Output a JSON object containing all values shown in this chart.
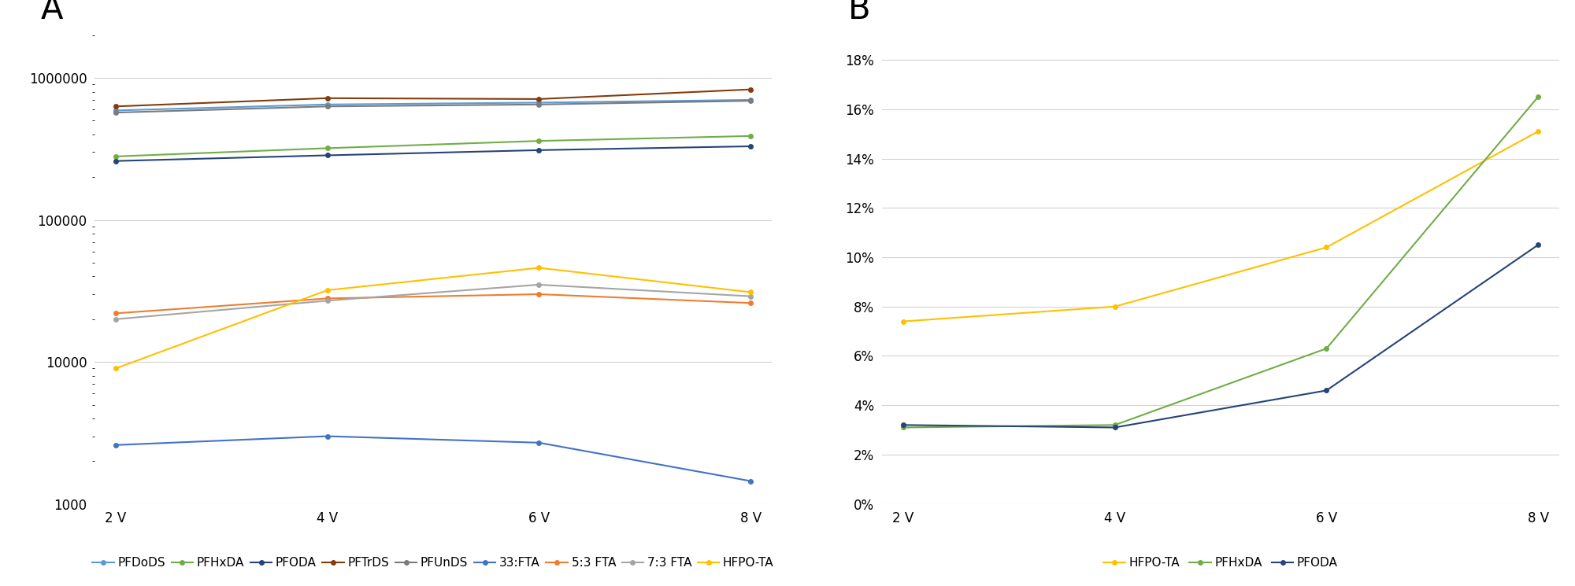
{
  "panel_A": {
    "x_labels": [
      "2 V",
      "4 V",
      "6 V",
      "8 V"
    ],
    "x_values": [
      2,
      4,
      6,
      8
    ],
    "series": [
      {
        "name": "PFDoDS",
        "color": "#5b9bd5",
        "values": [
          590000,
          650000,
          670000,
          700000
        ]
      },
      {
        "name": "PFHxDA",
        "color": "#70ad47",
        "values": [
          280000,
          320000,
          360000,
          390000
        ]
      },
      {
        "name": "PFODA",
        "color": "#264478",
        "values": [
          260000,
          285000,
          310000,
          330000
        ]
      },
      {
        "name": "PFTrDS",
        "color": "#843c0c",
        "values": [
          630000,
          720000,
          710000,
          830000
        ]
      },
      {
        "name": "PFUnDS",
        "color": "#7b7b7b",
        "values": [
          570000,
          630000,
          650000,
          690000
        ]
      },
      {
        "name": "33:FTA",
        "color": "#4472c4",
        "values": [
          2600,
          3000,
          2700,
          1450
        ]
      },
      {
        "name": "5:3 FTA",
        "color": "#ed7d31",
        "values": [
          22000,
          28000,
          30000,
          26000
        ]
      },
      {
        "name": "7:3 FTA",
        "color": "#a5a5a5",
        "values": [
          20000,
          27000,
          35000,
          29000
        ]
      },
      {
        "name": "HFPO-TA",
        "color": "#ffc000",
        "values": [
          9000,
          32000,
          46000,
          31000
        ]
      }
    ],
    "ylim": [
      1000,
      2000000
    ],
    "yticks": [
      1000,
      10000,
      100000,
      1000000
    ],
    "ytick_labels": [
      "1000",
      "10000",
      "100000",
      "1000000"
    ]
  },
  "panel_B": {
    "x_labels": [
      "2 V",
      "4 V",
      "6 V",
      "8 V"
    ],
    "x_values": [
      2,
      4,
      6,
      8
    ],
    "series": [
      {
        "name": "HFPO-TA",
        "color": "#ffc000",
        "values": [
          0.074,
          0.08,
          0.104,
          0.151
        ]
      },
      {
        "name": "PFHxDA",
        "color": "#70ad47",
        "values": [
          0.031,
          0.032,
          0.063,
          0.165
        ]
      },
      {
        "name": "PFODA",
        "color": "#264478",
        "values": [
          0.032,
          0.031,
          0.046,
          0.105
        ]
      }
    ],
    "ylim": [
      0,
      0.19
    ],
    "yticks": [
      0.0,
      0.02,
      0.04,
      0.06,
      0.08,
      0.1,
      0.12,
      0.14,
      0.16,
      0.18
    ],
    "ytick_labels": [
      "0%",
      "2%",
      "4%",
      "6%",
      "8%",
      "10%",
      "12%",
      "14%",
      "16%",
      "18%"
    ]
  },
  "background_color": "#ffffff",
  "grid_color": "#d3d3d3",
  "label_A": "A",
  "label_B": "B",
  "label_fontsize": 30,
  "tick_labelsize": 12,
  "legend_fontsize": 11
}
